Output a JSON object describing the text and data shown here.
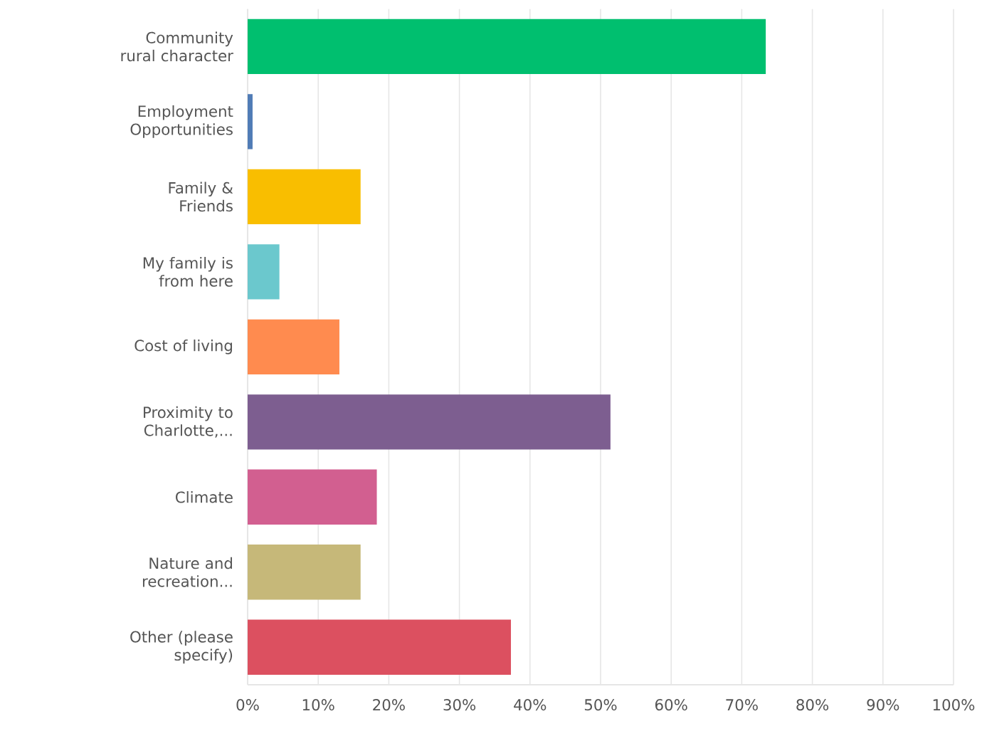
{
  "chart_data": {
    "type": "bar",
    "orientation": "horizontal",
    "categories": [
      "Community rural character",
      "Employment Opportunities",
      "Family & Friends",
      "My family is from here",
      "Cost of living",
      "Proximity to Charlotte,...",
      "Climate",
      "Nature and recreation...",
      "Other (please specify)"
    ],
    "values": [
      73.4,
      0.7,
      16.0,
      4.5,
      13.0,
      51.4,
      18.3,
      16.0,
      37.3
    ],
    "colors": [
      "#00bf6f",
      "#507cb6",
      "#f9be00",
      "#6bc8cd",
      "#ff8b4f",
      "#7d5e90",
      "#d25f90",
      "#c6b879",
      "#dc5060"
    ],
    "xlim": [
      0,
      100
    ],
    "xticks": [
      {
        "value": 0,
        "label": "0%"
      },
      {
        "value": 10,
        "label": "10%"
      },
      {
        "value": 20,
        "label": "20%"
      },
      {
        "value": 30,
        "label": "30%"
      },
      {
        "value": 40,
        "label": "40%"
      },
      {
        "value": 50,
        "label": "50%"
      },
      {
        "value": 60,
        "label": "60%"
      },
      {
        "value": 70,
        "label": "70%"
      },
      {
        "value": 80,
        "label": "80%"
      },
      {
        "value": 90,
        "label": "90%"
      },
      {
        "value": 100,
        "label": "100%"
      }
    ],
    "grid": "x"
  }
}
